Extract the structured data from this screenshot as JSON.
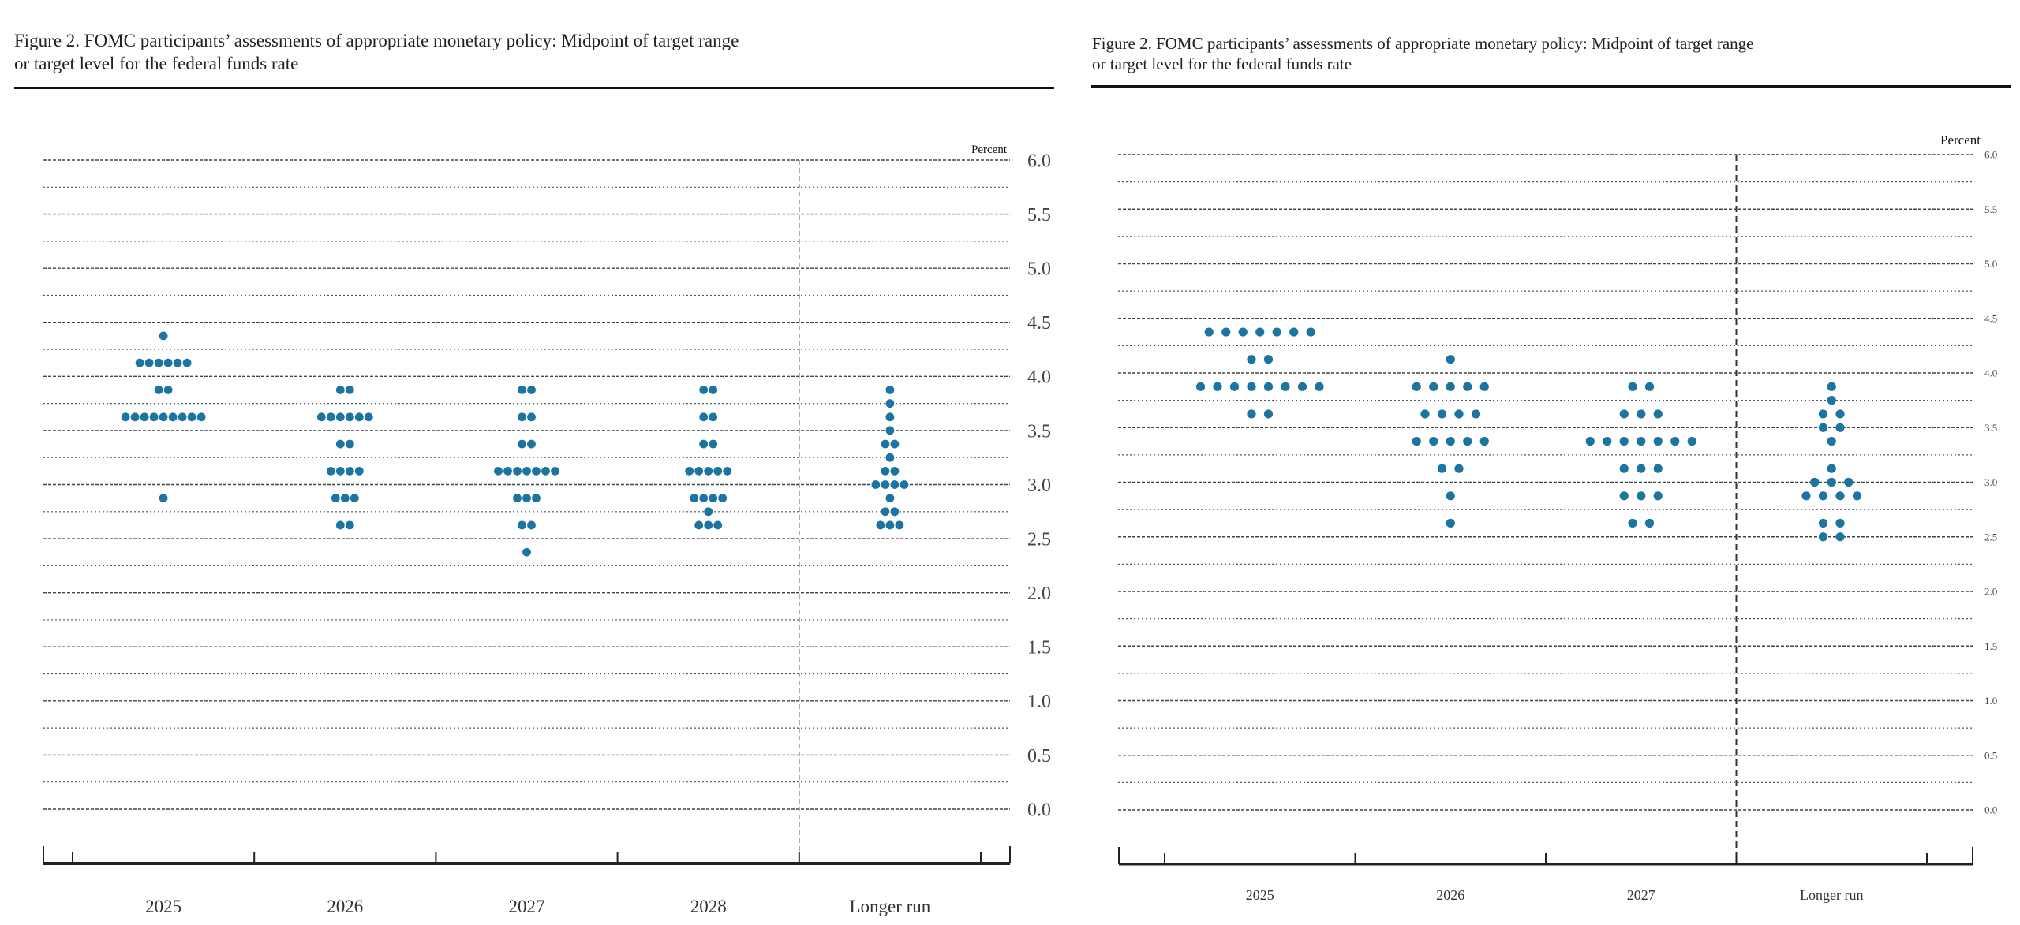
{
  "chart_data": [
    {
      "type": "scatter",
      "subtype": "dot-plot",
      "title": "Figure 2. FOMC participants’ assessments of appropriate monetary policy: Midpoint of target range or target level for the federal funds rate",
      "title_line1": "Figure 2. FOMC participants’ assessments of appropriate monetary policy: Midpoint of target range",
      "title_line2": "or target level for the federal funds rate",
      "unit_label": "Percent",
      "ylim": [
        0,
        6
      ],
      "yticks": [
        "0.0",
        "0.5",
        "1.0",
        "1.5",
        "2.0",
        "2.5",
        "3.0",
        "3.5",
        "4.0",
        "4.5",
        "5.0",
        "5.5",
        "6.0"
      ],
      "grid": true,
      "marker_color": "#1b75a0",
      "categories": [
        "2025",
        "2026",
        "2027",
        "2028",
        "Longer run"
      ],
      "series": [
        {
          "name": "2025",
          "points": [
            {
              "y": 4.375,
              "n": 1
            },
            {
              "y": 4.125,
              "n": 6
            },
            {
              "y": 3.875,
              "n": 2
            },
            {
              "y": 3.625,
              "n": 9
            },
            {
              "y": 2.875,
              "n": 1
            }
          ]
        },
        {
          "name": "2026",
          "points": [
            {
              "y": 3.875,
              "n": 2
            },
            {
              "y": 3.625,
              "n": 6
            },
            {
              "y": 3.375,
              "n": 2
            },
            {
              "y": 3.125,
              "n": 4
            },
            {
              "y": 2.875,
              "n": 3
            },
            {
              "y": 2.625,
              "n": 2
            }
          ]
        },
        {
          "name": "2027",
          "points": [
            {
              "y": 3.875,
              "n": 2
            },
            {
              "y": 3.625,
              "n": 2
            },
            {
              "y": 3.375,
              "n": 2
            },
            {
              "y": 3.125,
              "n": 7
            },
            {
              "y": 2.875,
              "n": 3
            },
            {
              "y": 2.625,
              "n": 2
            },
            {
              "y": 2.375,
              "n": 1
            }
          ]
        },
        {
          "name": "2028",
          "points": [
            {
              "y": 3.875,
              "n": 2
            },
            {
              "y": 3.625,
              "n": 2
            },
            {
              "y": 3.375,
              "n": 2
            },
            {
              "y": 3.125,
              "n": 5
            },
            {
              "y": 2.875,
              "n": 4
            },
            {
              "y": 2.75,
              "n": 1
            },
            {
              "y": 2.625,
              "n": 3
            }
          ]
        },
        {
          "name": "Longer run",
          "points": [
            {
              "y": 3.875,
              "n": 1
            },
            {
              "y": 3.75,
              "n": 1
            },
            {
              "y": 3.625,
              "n": 1
            },
            {
              "y": 3.5,
              "n": 1
            },
            {
              "y": 3.375,
              "n": 2
            },
            {
              "y": 3.25,
              "n": 1
            },
            {
              "y": 3.125,
              "n": 2
            },
            {
              "y": 3.0,
              "n": 4
            },
            {
              "y": 2.875,
              "n": 1
            },
            {
              "y": 2.75,
              "n": 2
            },
            {
              "y": 2.625,
              "n": 3
            }
          ]
        }
      ]
    },
    {
      "type": "scatter",
      "subtype": "dot-plot",
      "title": "Figure 2. FOMC participants’ assessments of appropriate monetary policy: Midpoint of target range or target level for the federal funds rate",
      "title_line1": "Figure 2.  FOMC participants’ assessments of appropriate monetary policy: Midpoint of target range",
      "title_line2": "or target level for the federal funds rate",
      "unit_label": "Percent",
      "ylim": [
        0,
        6
      ],
      "yticks": [
        "0.0",
        "0.5",
        "1.0",
        "1.5",
        "2.0",
        "2.5",
        "3.0",
        "3.5",
        "4.0",
        "4.5",
        "5.0",
        "5.5",
        "6.0"
      ],
      "grid": true,
      "marker_color": "#1b75a0",
      "categories": [
        "2025",
        "2026",
        "2027",
        "Longer run"
      ],
      "series": [
        {
          "name": "2025",
          "points": [
            {
              "y": 4.375,
              "n": 7
            },
            {
              "y": 4.125,
              "n": 2
            },
            {
              "y": 3.875,
              "n": 8
            },
            {
              "y": 3.625,
              "n": 2
            }
          ]
        },
        {
          "name": "2026",
          "points": [
            {
              "y": 4.125,
              "n": 1
            },
            {
              "y": 3.875,
              "n": 5
            },
            {
              "y": 3.625,
              "n": 4
            },
            {
              "y": 3.375,
              "n": 5
            },
            {
              "y": 3.125,
              "n": 2
            },
            {
              "y": 2.875,
              "n": 1
            },
            {
              "y": 2.625,
              "n": 1
            }
          ]
        },
        {
          "name": "2027",
          "points": [
            {
              "y": 3.875,
              "n": 2
            },
            {
              "y": 3.625,
              "n": 3
            },
            {
              "y": 3.375,
              "n": 7
            },
            {
              "y": 3.125,
              "n": 3
            },
            {
              "y": 2.875,
              "n": 3
            },
            {
              "y": 2.625,
              "n": 2
            }
          ]
        },
        {
          "name": "Longer run",
          "points": [
            {
              "y": 3.875,
              "n": 1
            },
            {
              "y": 3.75,
              "n": 1
            },
            {
              "y": 3.625,
              "n": 2
            },
            {
              "y": 3.5,
              "n": 2
            },
            {
              "y": 3.375,
              "n": 1
            },
            {
              "y": 3.125,
              "n": 1
            },
            {
              "y": 3.0,
              "n": 3
            },
            {
              "y": 2.875,
              "n": 4
            },
            {
              "y": 2.625,
              "n": 2
            },
            {
              "y": 2.5,
              "n": 2
            }
          ]
        }
      ]
    }
  ]
}
